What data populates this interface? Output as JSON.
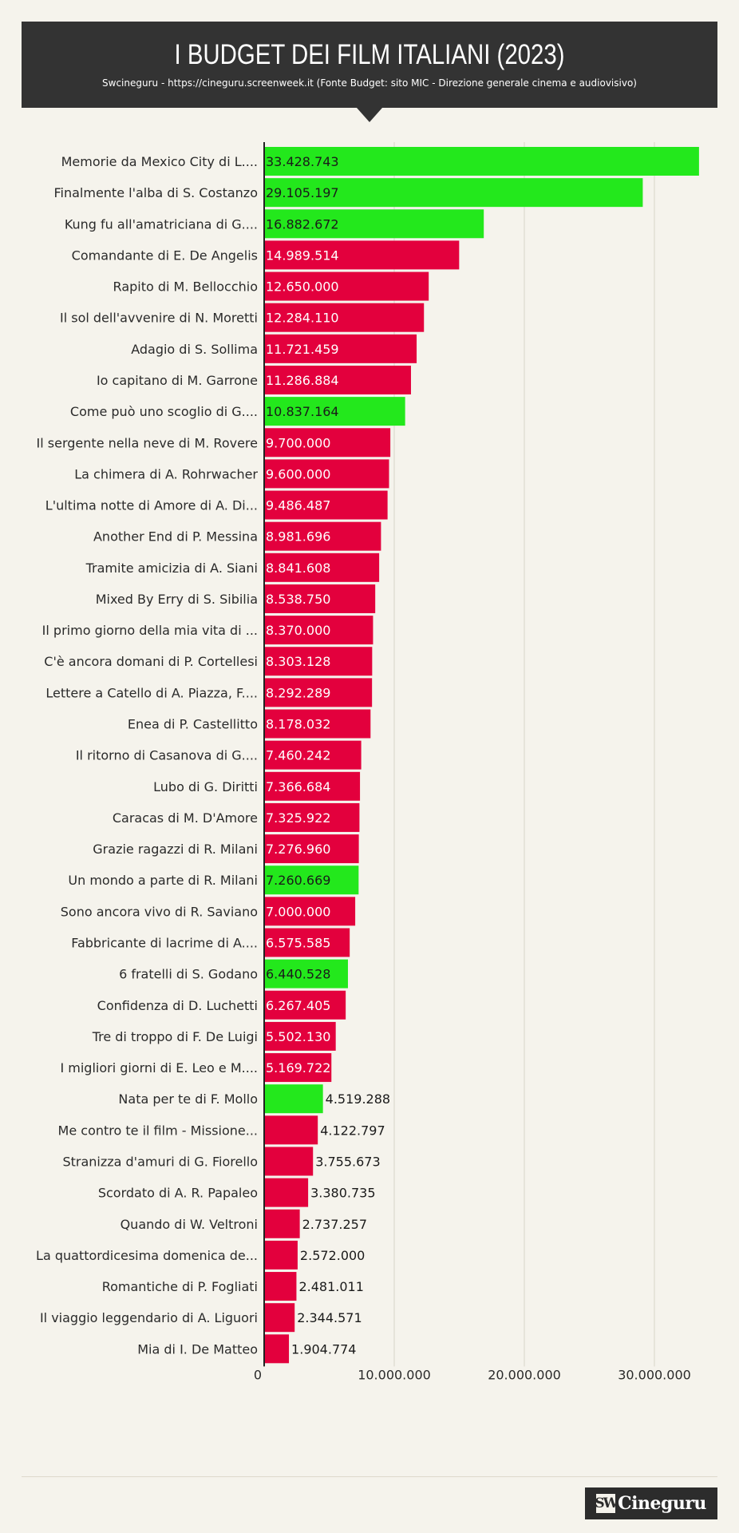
{
  "header": {
    "title": "I BUDGET DEI FILM ITALIANI (2023)",
    "subtitle": "Swcineguru - https://cineguru.screenweek.it (Fonte Budget: sito MIC - Direzione generale cinema e audiovisivo)"
  },
  "logo": {
    "mark": "SW",
    "text": "Cineguru"
  },
  "colors": {
    "red": "#e3003d",
    "green": "#23e81c",
    "background": "#f5f3ec",
    "header": "#333333"
  },
  "chart_data": {
    "type": "bar",
    "orientation": "horizontal",
    "title": "I BUDGET DEI FILM ITALIANI (2023)",
    "xlim": [
      0,
      35000000
    ],
    "x_ticks": [
      0,
      10000000,
      20000000,
      30000000
    ],
    "x_tick_labels": [
      "0",
      "10.000.000",
      "20.000.000",
      "30.000.000"
    ],
    "grid": true,
    "categories": [
      "Memorie da Mexico City di L....",
      "Finalmente l'alba di S. Costanzo",
      "Kung fu all'amatriciana di G....",
      "Comandante di E. De Angelis",
      "Rapito di M. Bellocchio",
      "Il sol dell'avvenire di N. Moretti",
      "Adagio di S. Sollima",
      "Io capitano di M. Garrone",
      "Come può uno scoglio di G....",
      "Il sergente nella neve di M. Rovere",
      "La chimera di A. Rohrwacher",
      "L'ultima notte di Amore di A. Di...",
      "Another End di P. Messina",
      "Tramite amicizia di A. Siani",
      "Mixed By Erry di S. Sibilia",
      "Il primo giorno della mia vita di ...",
      "C'è ancora domani di P. Cortellesi",
      "Lettere a Catello di A. Piazza, F....",
      "Enea di P. Castellitto",
      "Il ritorno di Casanova di G....",
      "Lubo di G. Diritti",
      "Caracas di M. D'Amore",
      "Grazie ragazzi di R. Milani",
      "Un mondo a parte di R. Milani",
      "Sono ancora vivo di R. Saviano",
      "Fabbricante di lacrime di A....",
      "6 fratelli di S. Godano",
      "Confidenza di D. Luchetti",
      "Tre di troppo di F. De Luigi",
      "I migliori giorni di E. Leo e M....",
      "Nata per te di F. Mollo",
      "Me contro te il film - Missione...",
      "Stranizza d'amuri di G. Fiorello",
      "Scordato di A. R. Papaleo",
      "Quando di W. Veltroni",
      "La quattordicesima domenica de...",
      "Romantiche di P. Fogliati",
      "Il viaggio leggendario di A. Liguori",
      "Mia di I. De Matteo"
    ],
    "values": [
      33428743,
      29105197,
      16882672,
      14989514,
      12650000,
      12284110,
      11721459,
      11286884,
      10837164,
      9700000,
      9600000,
      9486487,
      8981696,
      8841608,
      8538750,
      8370000,
      8303128,
      8292289,
      8178032,
      7460242,
      7366684,
      7325922,
      7276960,
      7260669,
      7000000,
      6575585,
      6440528,
      6267405,
      5502130,
      5169722,
      4519288,
      4122797,
      3755673,
      3380735,
      2737257,
      2572000,
      2481011,
      2344571,
      1904774
    ],
    "value_labels": [
      "33.428.743",
      "29.105.197",
      "16.882.672",
      "14.989.514",
      "12.650.000",
      "12.284.110",
      "11.721.459",
      "11.286.884",
      "10.837.164",
      "9.700.000",
      "9.600.000",
      "9.486.487",
      "8.981.696",
      "8.841.608",
      "8.538.750",
      "8.370.000",
      "8.303.128",
      "8.292.289",
      "8.178.032",
      "7.460.242",
      "7.366.684",
      "7.325.922",
      "7.276.960",
      "7.260.669",
      "7.000.000",
      "6.575.585",
      "6.440.528",
      "6.267.405",
      "5.502.130",
      "5.169.722",
      "4.519.288",
      "4.122.797",
      "3.755.673",
      "3.380.735",
      "2.737.257",
      "2.572.000",
      "2.481.011",
      "2.344.571",
      "1.904.774"
    ],
    "bar_colors": [
      "green",
      "green",
      "green",
      "red",
      "red",
      "red",
      "red",
      "red",
      "green",
      "red",
      "red",
      "red",
      "red",
      "red",
      "red",
      "red",
      "red",
      "red",
      "red",
      "red",
      "red",
      "red",
      "red",
      "green",
      "red",
      "red",
      "green",
      "red",
      "red",
      "red",
      "green",
      "red",
      "red",
      "red",
      "red",
      "red",
      "red",
      "red",
      "red"
    ]
  }
}
